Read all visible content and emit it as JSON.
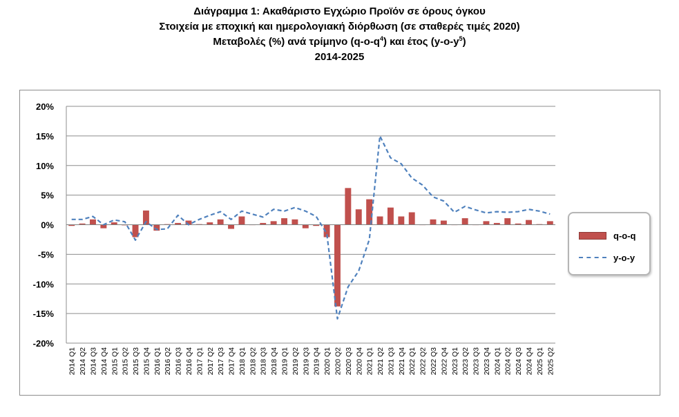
{
  "chart_data": {
    "type": "bar",
    "title": "Διάγραμμα 1: Ακαθάριστο Εγχώριο Προϊόν σε όρους όγκου",
    "subtitle_lines": [
      "Στοιχεία με εποχική και ημερολογιακή διόρθωση (σε σταθερές τιμές 2020)",
      "Μεταβολές (%) ανά τρίμηνο (q-o-q",
      "4",
      ") και έτος (y-o-y",
      "5",
      ")",
      "2014-2025"
    ],
    "categories": [
      "2014 Q1",
      "2014 Q2",
      "2014 Q3",
      "2014 Q4",
      "2015 Q1",
      "2015 Q2",
      "2015 Q3",
      "2015 Q4",
      "2016 Q1",
      "2016 Q2",
      "2016 Q3",
      "2016 Q4",
      "2017 Q1",
      "2017 Q2",
      "2017 Q3",
      "2017 Q4",
      "2018 Q1",
      "2018 Q2",
      "2018 Q3",
      "2018 Q4",
      "2019 Q1",
      "2019 Q2",
      "2019 Q3",
      "2019 Q4",
      "2020 Q1",
      "2020 Q2",
      "2020 Q3",
      "2020 Q4",
      "2021 Q1",
      "2021 Q2",
      "2021 Q3",
      "2021 Q4",
      "2022 Q1",
      "2022 Q2",
      "2022 Q3",
      "2022 Q4",
      "2023 Q1",
      "2023 Q2",
      "2023 Q3",
      "2023 Q4",
      "2024 Q1",
      "2024 Q2",
      "2024 Q3",
      "2024 Q4",
      "2025 Q1",
      "2025 Q2"
    ],
    "series": [
      {
        "name": "q-o-q",
        "kind": "bar",
        "color": "#c0504d",
        "values": [
          -0.2,
          0.2,
          0.9,
          -0.6,
          0.4,
          -0.1,
          -2.1,
          2.4,
          -1.0,
          0.1,
          0.3,
          0.7,
          0.1,
          0.4,
          0.9,
          -0.7,
          1.4,
          0.0,
          0.3,
          0.6,
          1.1,
          0.9,
          -0.6,
          -0.2,
          -2.1,
          -13.8,
          6.2,
          2.6,
          4.3,
          1.4,
          2.9,
          1.4,
          2.1,
          0.0,
          0.9,
          0.7,
          0.0,
          1.1,
          0.0,
          0.6,
          0.3,
          1.1,
          0.2,
          0.8,
          0.1,
          0.6
        ]
      },
      {
        "name": "y-o-y",
        "kind": "line",
        "color": "#4f81bd",
        "dash": true,
        "values": [
          0.9,
          0.9,
          1.4,
          0.0,
          0.8,
          0.5,
          -2.6,
          0.5,
          -0.8,
          -0.7,
          1.6,
          0.0,
          0.9,
          1.6,
          2.2,
          0.9,
          2.3,
          1.8,
          1.3,
          2.6,
          2.3,
          2.9,
          2.3,
          1.4,
          -1.5,
          -15.9,
          -10.5,
          -7.8,
          -2.5,
          15.0,
          11.3,
          10.3,
          7.9,
          6.7,
          4.7,
          4.0,
          2.1,
          3.1,
          2.5,
          2.0,
          2.2,
          2.1,
          2.2,
          2.6,
          2.3,
          1.8
        ]
      }
    ],
    "y_tick_labels": [
      "20%",
      "15%",
      "10%",
      "5%",
      "0%",
      "-5%",
      "-10%",
      "-15%",
      "-20%"
    ],
    "y_ticks": [
      20,
      15,
      10,
      5,
      0,
      -5,
      -10,
      -15,
      -20
    ],
    "ylim": [
      -20,
      20
    ],
    "grid": true,
    "legend_position": "right"
  }
}
